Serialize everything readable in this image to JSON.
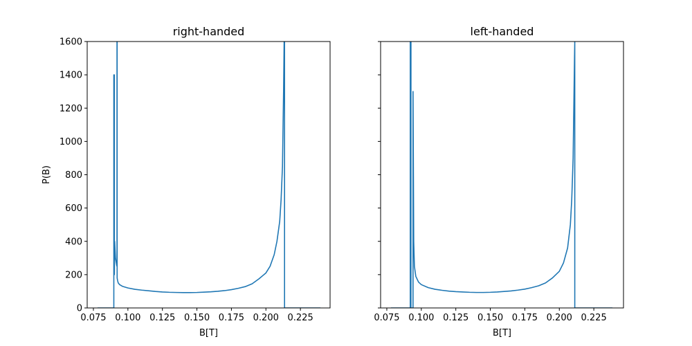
{
  "chart_data": [
    {
      "type": "line",
      "title": "right-handed",
      "xlabel": "B[T]",
      "ylabel": "P(B)",
      "xlim": [
        0.0705,
        0.2465
      ],
      "ylim": [
        0,
        1600
      ],
      "xticks": [
        0.075,
        0.1,
        0.125,
        0.15,
        0.175,
        0.2,
        0.225
      ],
      "xtick_labels": [
        "0.075",
        "0.100",
        "0.125",
        "0.150",
        "0.175",
        "0.200",
        "0.225"
      ],
      "yticks": [
        0,
        200,
        400,
        600,
        800,
        1000,
        1200,
        1400,
        1600
      ],
      "ytick_labels": [
        "0",
        "200",
        "400",
        "600",
        "800",
        "1000",
        "1200",
        "1400",
        "1600"
      ],
      "show_ytick_labels": true,
      "grid": false,
      "color": "#1f77b4",
      "series": [
        {
          "x": [
            0.078,
            0.0898,
            0.0898,
            0.0902,
            0.0902,
            0.0904,
            0.0907,
            0.091,
            0.0914,
            0.0917,
            0.0919,
            0.0921,
            0.0921,
            0.0922,
            0.0922,
            0.0925,
            0.093,
            0.094,
            0.096,
            0.1,
            0.105,
            0.11,
            0.115,
            0.12,
            0.125,
            0.13,
            0.135,
            0.14,
            0.145,
            0.15,
            0.155,
            0.16,
            0.165,
            0.17,
            0.175,
            0.18,
            0.185,
            0.19,
            0.195,
            0.2,
            0.203,
            0.206,
            0.208,
            0.21,
            0.211,
            0.212,
            0.2128,
            0.2132,
            0.2135,
            0.2135,
            0.214,
            0.22,
            0.23,
            0.2395
          ],
          "y": [
            0,
            0,
            1400,
            1400,
            200,
            400,
            350,
            300,
            280,
            265,
            255,
            250,
            1600,
            1600,
            180,
            165,
            150,
            140,
            130,
            120,
            112,
            107,
            103,
            99,
            96,
            94,
            93,
            92,
            92,
            93,
            95,
            97,
            100,
            104,
            110,
            118,
            128,
            145,
            175,
            210,
            250,
            320,
            400,
            520,
            650,
            850,
            1300,
            1600,
            1600,
            0,
            0,
            0,
            0,
            0
          ]
        }
      ]
    },
    {
      "type": "line",
      "title": "left-handed",
      "xlabel": "B[T]",
      "ylabel": "",
      "xlim": [
        0.0705,
        0.2465
      ],
      "ylim": [
        0,
        1600
      ],
      "xticks": [
        0.075,
        0.1,
        0.125,
        0.15,
        0.175,
        0.2,
        0.225
      ],
      "xtick_labels": [
        "0.075",
        "0.100",
        "0.125",
        "0.150",
        "0.175",
        "0.200",
        "0.225"
      ],
      "yticks": [
        0,
        200,
        400,
        600,
        800,
        1000,
        1200,
        1400,
        1600
      ],
      "ytick_labels": [],
      "show_ytick_labels": false,
      "grid": false,
      "color": "#1f77b4",
      "series": [
        {
          "x": [
            0.078,
            0.092,
            0.092,
            0.0925,
            0.0925,
            0.093,
            0.0935,
            0.094,
            0.094,
            0.0945,
            0.095,
            0.096,
            0.098,
            0.1,
            0.105,
            0.11,
            0.115,
            0.12,
            0.125,
            0.13,
            0.135,
            0.14,
            0.145,
            0.15,
            0.155,
            0.16,
            0.165,
            0.17,
            0.175,
            0.18,
            0.185,
            0.19,
            0.195,
            0.2,
            0.203,
            0.206,
            0.208,
            0.209,
            0.21,
            0.2105,
            0.211,
            0.2112,
            0.2112,
            0.215,
            0.225,
            0.2385
          ],
          "y": [
            0,
            0,
            1600,
            1600,
            0,
            0,
            0,
            0,
            1300,
            400,
            250,
            190,
            155,
            140,
            122,
            112,
            106,
            101,
            98,
            96,
            94,
            93,
            93,
            94,
            96,
            99,
            102,
            107,
            113,
            122,
            133,
            150,
            180,
            220,
            270,
            360,
            500,
            650,
            900,
            1200,
            1500,
            1600,
            0,
            0,
            0,
            0
          ]
        }
      ]
    }
  ]
}
